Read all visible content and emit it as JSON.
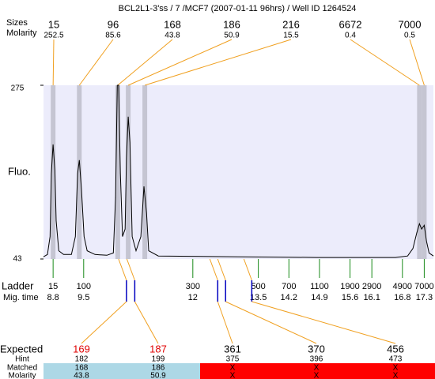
{
  "title": "BCL2L1-3'ss / 7 /MCF7 (2007-01-11 96hrs) / Well ID 1264524",
  "xlim": [
    8.58,
    17.51
  ],
  "y_axis": {
    "label": "Fluo.",
    "ylim": [
      43,
      275
    ],
    "yticks": [
      43,
      275
    ]
  },
  "peaks": {
    "label_sizes": "Sizes",
    "label_molarity": "Molarity",
    "sizes": [
      15,
      96,
      168,
      186,
      216,
      6672,
      7000
    ],
    "molarity": [
      252.5,
      85.6,
      43.8,
      50.9,
      15.5,
      0.4,
      0.5
    ],
    "mig_time": [
      8.8,
      9.4,
      10.28,
      10.52,
      10.9,
      17.19,
      17.3
    ]
  },
  "trace": {
    "x": [
      8.58,
      8.67,
      8.73,
      8.76,
      8.8,
      8.84,
      8.87,
      8.93,
      9.04,
      9.22,
      9.31,
      9.36,
      9.4,
      9.45,
      9.51,
      9.58,
      9.76,
      10.03,
      10.18,
      10.23,
      10.27,
      10.3,
      10.34,
      10.39,
      10.45,
      10.48,
      10.52,
      10.56,
      10.61,
      10.7,
      10.81,
      10.88,
      10.94,
      10.99,
      11.21,
      13.02,
      14.83,
      16.64,
      16.92,
      17.04,
      17.13,
      17.19,
      17.24,
      17.3,
      17.35,
      17.41,
      17.51
    ],
    "y": [
      46,
      49,
      73,
      157,
      196,
      162,
      94,
      54,
      49,
      49,
      73,
      157,
      175,
      136,
      73,
      54,
      49,
      48,
      51,
      125,
      275,
      275,
      157,
      73,
      83,
      178,
      233,
      199,
      73,
      54,
      73,
      140,
      104,
      54,
      47,
      46,
      45,
      45,
      47,
      57,
      78,
      90,
      83,
      88,
      67,
      51,
      47
    ]
  },
  "ladder": {
    "label": "Ladder",
    "time_label": "Mig. time",
    "sizes": [
      15,
      100,
      300,
      500,
      700,
      1100,
      1900,
      2900,
      4900,
      7000
    ],
    "mig_time": [
      8.8,
      9.5,
      12,
      13.5,
      14.2,
      14.9,
      15.6,
      16.1,
      16.8,
      17.3
    ]
  },
  "expected": {
    "label": "Expected",
    "values": [
      169,
      187,
      361,
      370,
      456
    ],
    "mig_time": [
      10.48,
      10.67,
      12.57,
      12.75,
      13.35
    ]
  },
  "hint": {
    "label": "Hint",
    "values": [
      182,
      199,
      375,
      396,
      473
    ]
  },
  "matched": {
    "label": "Matched",
    "values": [
      168,
      186,
      "X",
      "X",
      "X"
    ]
  },
  "molarity": {
    "label": "Molarity",
    "values": [
      43.8,
      50.9,
      "X",
      "X",
      "X"
    ]
  }
}
